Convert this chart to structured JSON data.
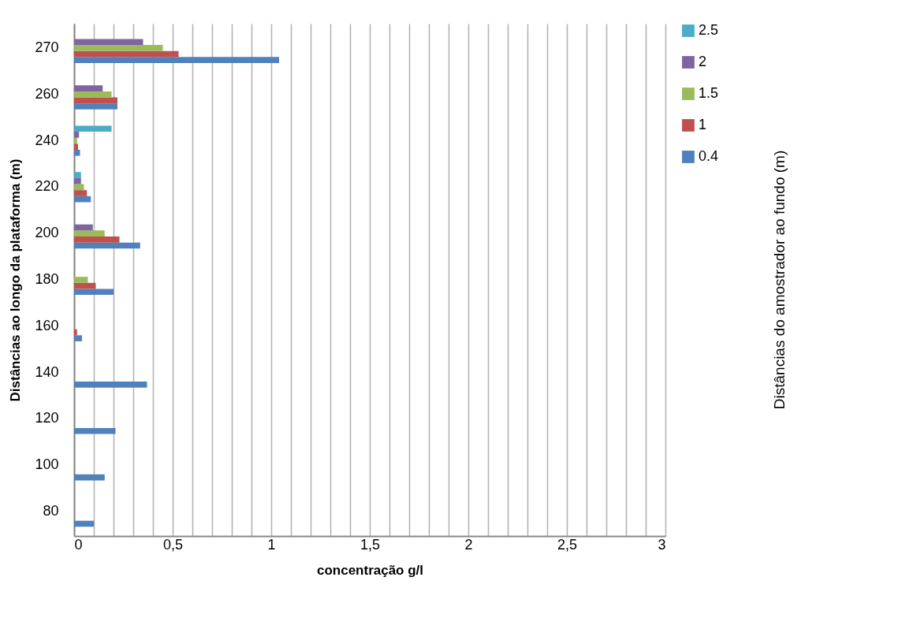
{
  "chart_data": {
    "type": "bar",
    "orientation": "horizontal",
    "xlabel": "concentração g/l",
    "ylabel": "Distâncias ao longo da plataforma (m)",
    "legend_title": "Distâncias do amostrador ao fundo (m)",
    "categories": [
      "270",
      "260",
      "240",
      "220",
      "200",
      "180",
      "160",
      "140",
      "120",
      "100",
      "80"
    ],
    "series": [
      {
        "name": "0.4",
        "color": "#4f81bd",
        "values": [
          1.04,
          0.22,
          0.03,
          0.085,
          0.335,
          0.2,
          0.04,
          0.37,
          0.21,
          0.155,
          0.1
        ]
      },
      {
        "name": "1",
        "color": "#c0504d",
        "values": [
          0.53,
          0.22,
          0.02,
          0.065,
          0.23,
          0.11,
          0.015,
          null,
          null,
          null,
          null
        ]
      },
      {
        "name": "1.5",
        "color": "#9bbb59",
        "values": [
          0.45,
          0.19,
          0.015,
          0.05,
          0.155,
          0.07,
          null,
          null,
          null,
          null,
          null
        ]
      },
      {
        "name": "2",
        "color": "#8064a2",
        "values": [
          0.35,
          0.145,
          0.025,
          0.035,
          0.095,
          null,
          null,
          null,
          null,
          null,
          null
        ]
      },
      {
        "name": "2.5",
        "color": "#4bacc6",
        "values": [
          null,
          null,
          0.19,
          0.035,
          null,
          null,
          null,
          null,
          null,
          null,
          null
        ]
      }
    ],
    "xlim": [
      0,
      3
    ],
    "xticks": [
      0,
      {
        "value": 0.1,
        "label": null
      },
      {
        "value": 0.2,
        "label": null
      },
      {
        "value": 0.3,
        "label": null
      },
      {
        "value": 0.4,
        "label": null
      },
      {
        "value": 0.5,
        "label": "0,5"
      },
      {
        "value": 0.6,
        "label": null
      },
      {
        "value": 0.7,
        "label": null
      },
      {
        "value": 0.8,
        "label": null
      },
      {
        "value": 0.9,
        "label": null
      },
      1,
      {
        "value": 1.1,
        "label": null
      },
      {
        "value": 1.2,
        "label": null
      },
      {
        "value": 1.3,
        "label": null
      },
      {
        "value": 1.4,
        "label": null
      },
      {
        "value": 1.5,
        "label": "1,5"
      },
      {
        "value": 1.6,
        "label": null
      },
      {
        "value": 1.7,
        "label": null
      },
      {
        "value": 1.8,
        "label": null
      },
      {
        "value": 1.9,
        "label": null
      },
      2,
      {
        "value": 2.1,
        "label": null
      },
      {
        "value": 2.2,
        "label": null
      },
      {
        "value": 2.3,
        "label": null
      },
      {
        "value": 2.4,
        "label": null
      },
      {
        "value": 2.5,
        "label": "2,5"
      },
      {
        "value": 2.6,
        "label": null
      },
      {
        "value": 2.7,
        "label": null
      },
      {
        "value": 2.8,
        "label": null
      },
      {
        "value": 2.9,
        "label": null
      },
      3
    ],
    "grid": "x",
    "legend": "right"
  }
}
